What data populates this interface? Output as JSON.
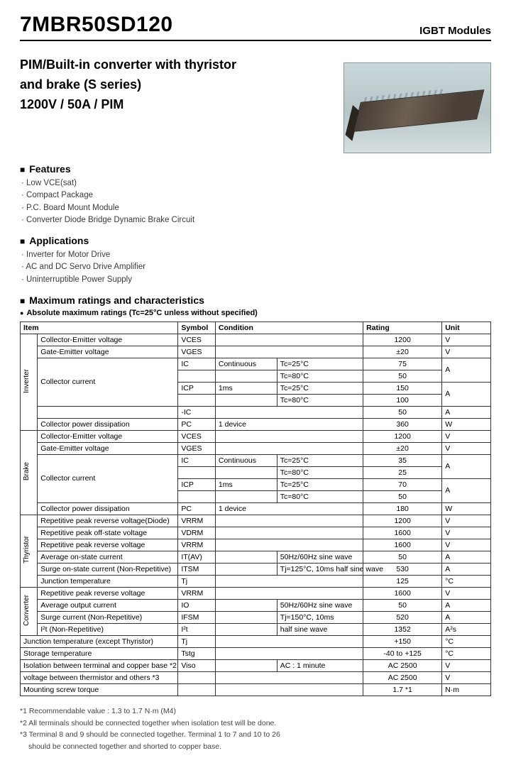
{
  "header": {
    "part": "7MBR50SD120",
    "category": "IGBT Modules"
  },
  "subtitle": {
    "line1": "PIM/Built-in converter with thyristor",
    "line2": "and brake  (S series)",
    "line3": "1200V / 50A / PIM"
  },
  "features": {
    "title": "Features",
    "items": [
      "Low VCE(sat)",
      "Compact Package",
      "P.C. Board Mount Module",
      "Converter Diode Bridge Dynamic Brake Circuit"
    ]
  },
  "applications": {
    "title": "Applications",
    "items": [
      "Inverter for Motor Drive",
      "AC and DC Servo Drive Amplifier",
      "Uninterruptible Power Supply"
    ]
  },
  "ratings": {
    "title": "Maximum ratings and characteristics",
    "subtitle": "Absolute maximum ratings (Tc=25°C unless without specified)",
    "columns": {
      "item": "Item",
      "symbol": "Symbol",
      "condition": "Condition",
      "rating": "Rating",
      "unit": "Unit"
    },
    "groups": [
      {
        "name": "Inverter",
        "rows": [
          {
            "item": "Collector-Emitter voltage",
            "sym": "VCES",
            "cond": "",
            "cond2": "",
            "rating": "1200",
            "unit": "V"
          },
          {
            "item": "Gate-Emitter voltage",
            "sym": "VGES",
            "cond": "",
            "cond2": "",
            "rating": "±20",
            "unit": "V"
          },
          {
            "item": "Collector current",
            "rowspan": 4,
            "subs": [
              {
                "sym": "IC",
                "cond": "Continuous",
                "cond2": "Tc=25°C",
                "rating": "75",
                "unit": "A",
                "unitspan": 2
              },
              {
                "sym": "",
                "cond": "",
                "cond2": "Tc=80°C",
                "rating": "50",
                "unit": ""
              },
              {
                "sym": "ICP",
                "cond": "1ms",
                "cond2": "Tc=25°C",
                "rating": "150",
                "unit": "A",
                "unitspan": 2
              },
              {
                "sym": "",
                "cond": "",
                "cond2": "Tc=80°C",
                "rating": "100",
                "unit": ""
              }
            ]
          },
          {
            "item": "",
            "sym": "-IC",
            "cond": "",
            "cond2": "",
            "rating": "50",
            "unit": "A"
          },
          {
            "item": "Collector power dissipation",
            "sym": "PC",
            "cond": "1 device",
            "cond2": "",
            "rating": "360",
            "unit": "W"
          }
        ]
      },
      {
        "name": "Brake",
        "rows": [
          {
            "item": "Collector-Emitter voltage",
            "sym": "VCES",
            "cond": "",
            "cond2": "",
            "rating": "1200",
            "unit": "V"
          },
          {
            "item": "Gate-Emitter voltage",
            "sym": "VGES",
            "cond": "",
            "cond2": "",
            "rating": "±20",
            "unit": "V"
          },
          {
            "item": "Collector current",
            "rowspan": 4,
            "subs": [
              {
                "sym": "IC",
                "cond": "Continuous",
                "cond2": "Tc=25°C",
                "rating": "35",
                "unit": "A",
                "unitspan": 2
              },
              {
                "sym": "",
                "cond": "",
                "cond2": "Tc=80°C",
                "rating": "25",
                "unit": ""
              },
              {
                "sym": "ICP",
                "cond": "1ms",
                "cond2": "Tc=25°C",
                "rating": "70",
                "unit": "A",
                "unitspan": 2
              },
              {
                "sym": "",
                "cond": "",
                "cond2": "Tc=80°C",
                "rating": "50",
                "unit": ""
              }
            ]
          },
          {
            "item": "Collector power dissipation",
            "sym": "PC",
            "cond": "1 device",
            "cond2": "",
            "rating": "180",
            "unit": "W"
          }
        ]
      },
      {
        "name": "Thyristor",
        "rows": [
          {
            "item": "Repetitive peak reverse voltage(Diode)",
            "sym": "VRRM",
            "cond": "",
            "cond2": "",
            "rating": "1200",
            "unit": "V"
          },
          {
            "item": "Repetitive peak off-state voltage",
            "sym": "VDRM",
            "cond": "",
            "cond2": "",
            "rating": "1600",
            "unit": "V"
          },
          {
            "item": "Repetitive peak reverse voltage",
            "sym": "VRRM",
            "cond": "",
            "cond2": "",
            "rating": "1600",
            "unit": "V"
          },
          {
            "item": "Average on-state current",
            "sym": "IT(AV)",
            "cond": "",
            "cond2": "50Hz/60Hz sine wave",
            "rating": "50",
            "unit": "A"
          },
          {
            "item": "Surge on-state current (Non-Repetitive)",
            "sym": "ITSM",
            "cond": "",
            "cond2": "Tj=125°C, 10ms half sine wave",
            "rating": "530",
            "unit": "A"
          },
          {
            "item": "Junction temperature",
            "sym": "Tj",
            "cond": "",
            "cond2": "",
            "rating": "125",
            "unit": "°C"
          }
        ]
      },
      {
        "name": "Converter",
        "rows": [
          {
            "item": "Repetitive peak reverse voltage",
            "sym": "VRRM",
            "cond": "",
            "cond2": "",
            "rating": "1600",
            "unit": "V"
          },
          {
            "item": "Average output current",
            "sym": "IO",
            "cond": "",
            "cond2": "50Hz/60Hz sine wave",
            "rating": "50",
            "unit": "A"
          },
          {
            "item": "Surge current (Non-Repetitive)",
            "sym": "IFSM",
            "cond": "",
            "cond2": "Tj=150°C, 10ms",
            "rating": "520",
            "unit": "A"
          },
          {
            "item": "I²t            (Non-Repetitive)",
            "sym": "I²t",
            "cond": "",
            "cond2": "half sine wave",
            "rating": "1352",
            "unit": "A²s"
          }
        ]
      }
    ],
    "tail": [
      {
        "item": "Junction temperature (except Thyristor)",
        "sym": "Tj",
        "cond": "",
        "cond2": "",
        "rating": "+150",
        "unit": "°C"
      },
      {
        "item": "Storage temperature",
        "sym": "Tstg",
        "cond": "",
        "cond2": "",
        "rating": "-40 to +125",
        "unit": "°C"
      },
      {
        "item": "Isolation  between terminal and copper base *2",
        "sym": "Viso",
        "cond": "",
        "cond2": "AC : 1 minute",
        "rating": "AC 2500",
        "unit": "V"
      },
      {
        "item": "voltage    between thermistor and others *3",
        "sym": "",
        "cond": "",
        "cond2": "",
        "rating": "AC 2500",
        "unit": "V"
      },
      {
        "item": "Mounting screw torque",
        "sym": "",
        "cond": "",
        "cond2": "",
        "rating": "1.7  *1",
        "unit": "N·m"
      }
    ]
  },
  "footnotes": [
    "*1 Recommendable value : 1.3 to 1.7 N·m (M4)",
    "*2 All terminals should be connected together when isolation test will be done.",
    "*3 Terminal 8 and 9 should be connected together. Terminal 1 to 7 and 10 to 26",
    "    should be connected together and shorted to copper base."
  ],
  "colors": {
    "border": "#333",
    "text": "#000",
    "muted": "#3a3a3a"
  },
  "colwidths": {
    "group": 24,
    "item": 196,
    "symbol": 52,
    "cond": 86,
    "cond2": 120,
    "rating": 110,
    "unit": 68
  }
}
